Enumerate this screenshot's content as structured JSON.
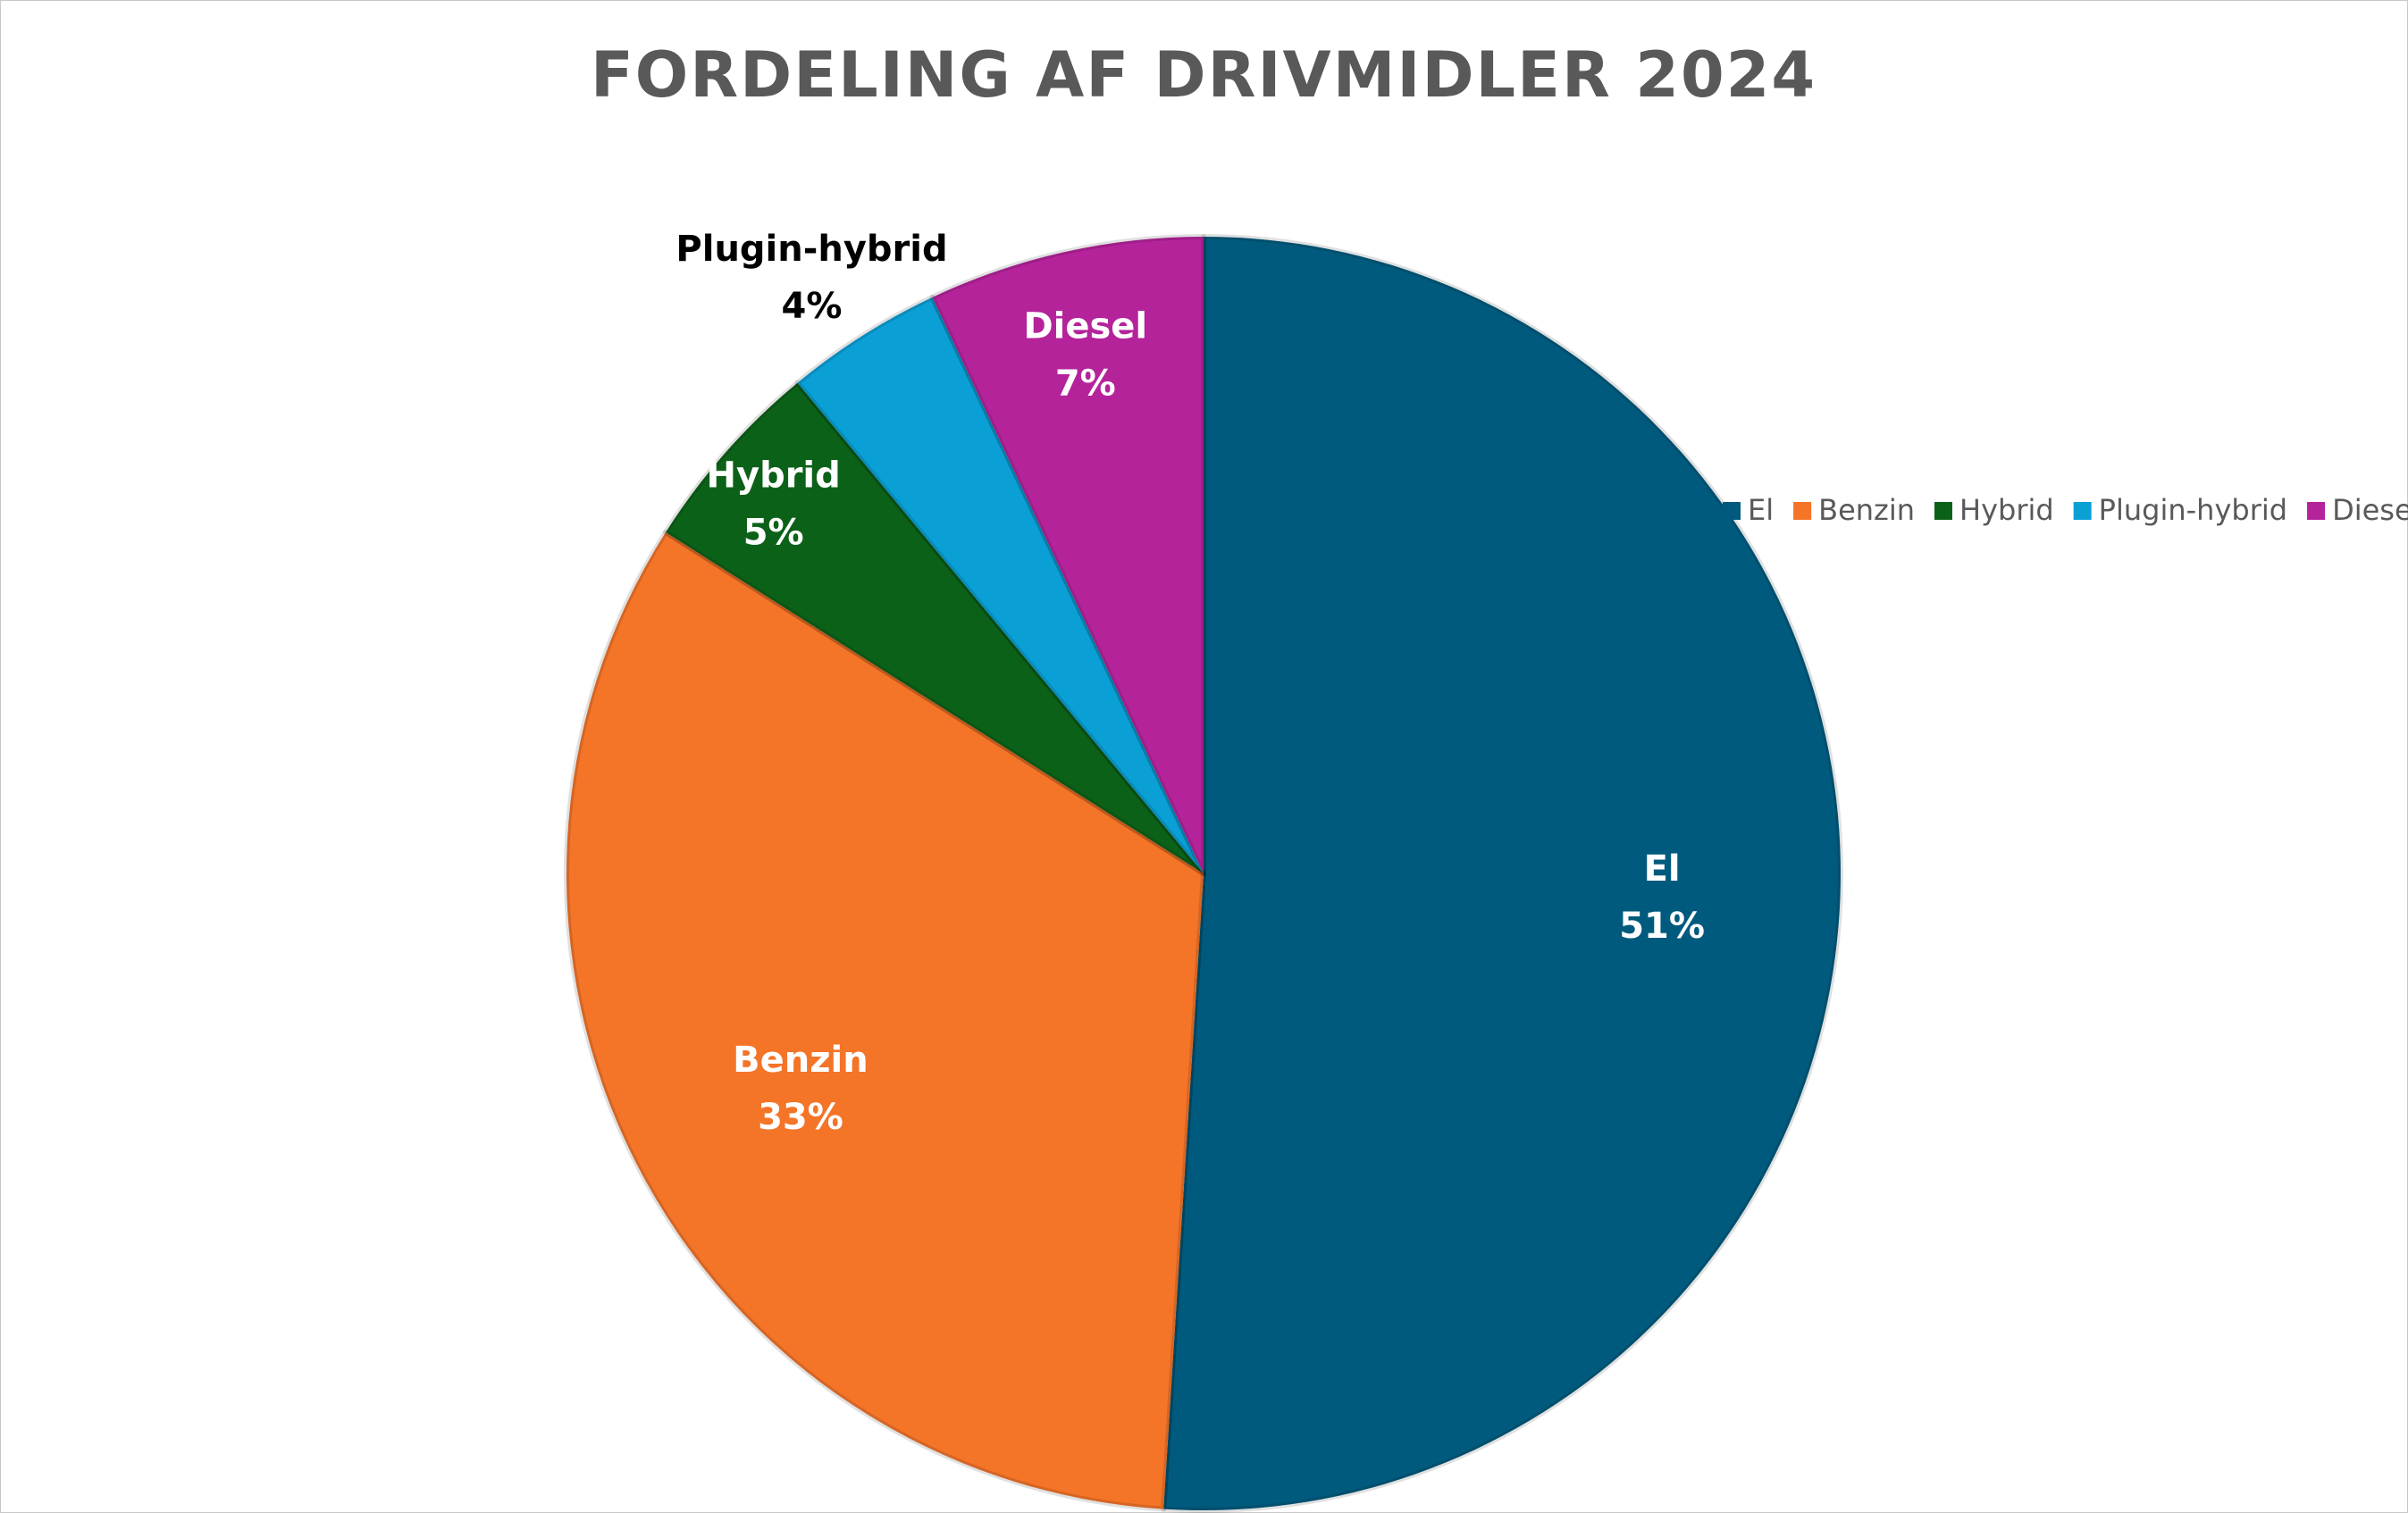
{
  "chart_data": {
    "type": "pie",
    "title": "FORDELING AF DRIVMIDLER 2024",
    "categories": [
      "El",
      "Benzin",
      "Hybrid",
      "Plugin-hybrid",
      "Diesel"
    ],
    "values": [
      51,
      33,
      5,
      4,
      7
    ],
    "labels": [
      "51%",
      "33%",
      "5%",
      "4%",
      "7%"
    ],
    "colors": [
      "#005a7d",
      "#f47428",
      "#0c6118",
      "#0aa0d6",
      "#b5239b"
    ],
    "label_colors": [
      "#ffffff",
      "#ffffff",
      "#ffffff",
      "#000000",
      "#ffffff"
    ],
    "legend": {
      "position": "right",
      "items": [
        "El",
        "Benzin",
        "Hybrid",
        "Plugin-hybrid",
        "Diesel"
      ]
    },
    "start_angle": "12 o'clock",
    "direction": "clockwise"
  }
}
